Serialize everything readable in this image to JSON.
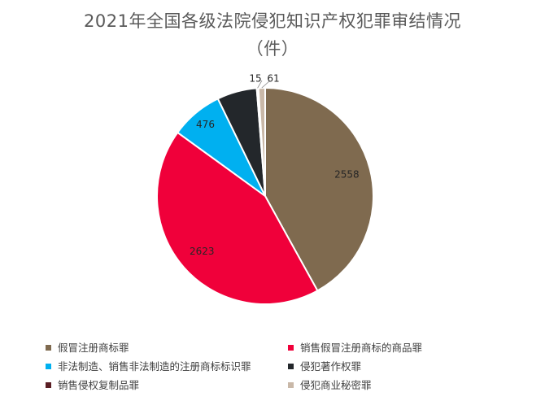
{
  "chart_data": {
    "type": "pie",
    "title_line1": "2021年全国各级法院侵犯知识产权犯罪审结情况",
    "title_line2": "（件）",
    "slices": [
      {
        "label": "假冒注册商标罪",
        "value": 2558,
        "color": "#7f6a4f"
      },
      {
        "label": "销售假冒注册商标的商品罪",
        "value": 2623,
        "color": "#f0003a"
      },
      {
        "label": "非法制造、销售非法制造的注册商标标识罪",
        "value": 476,
        "color": "#00b0f0"
      },
      {
        "label": "侵犯著作权罪",
        "value": 363,
        "color": "#23272b"
      },
      {
        "label": "销售侵权复制品罪",
        "value": 15,
        "color": "#5a1e24"
      },
      {
        "label": "侵犯商业秘密罪",
        "value": 61,
        "color": "#c9b8a8"
      }
    ],
    "data_labels_shown": [
      "2558",
      "2623",
      "476",
      "15",
      "61"
    ],
    "legend_position": "bottom"
  }
}
